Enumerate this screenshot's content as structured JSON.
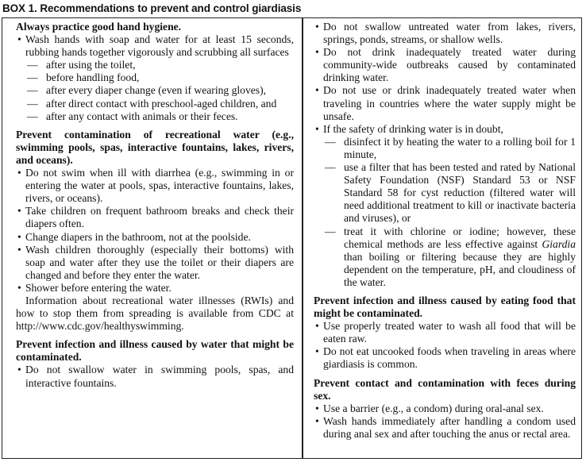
{
  "title": "BOX 1. Recommendations to prevent and control giardiasis",
  "columns": [
    {
      "sections": [
        {
          "heading": "Always practice good hand hygiene.",
          "items": [
            {
              "text": "Wash hands with soap and water for at least 15 seconds, rubbing hands together vigorously and scrubbing all surfaces",
              "subitems": [
                {
                  "text": "after using the toilet,"
                },
                {
                  "text": "before handling food,"
                },
                {
                  "text": "after every diaper change (even if wearing gloves),"
                },
                {
                  "text": "after direct contact with preschool-aged children, and"
                },
                {
                  "text": "after any contact with animals or their feces."
                }
              ]
            }
          ]
        },
        {
          "heading": "Prevent contamination of recreational water (e.g., swimming pools, spas, interactive fountains, lakes, rivers, and oceans).",
          "items": [
            {
              "text": "Do not swim when ill with diarrhea (e.g., swimming in or entering the water at pools, spas, interactive fountains, lakes, rivers, or oceans)."
            },
            {
              "text": "Take children on frequent bathroom breaks and check their diapers often."
            },
            {
              "text": "Change diapers in the bathroom, not at the poolside."
            },
            {
              "text": "Wash children thoroughly (especially their bottoms) with soap and water after they use the toilet or their diapers are changed and before they enter the water."
            },
            {
              "text": "Shower before entering the water."
            }
          ],
          "paragraph": "Information about recreational water illnesses (RWIs) and how to stop them from spreading is available from CDC at http://www.cdc.gov/healthyswimming."
        },
        {
          "heading": "Prevent infection and illness caused by water that might be contaminated.",
          "items": [
            {
              "text": "Do not swallow water in swimming pools, spas, and interactive fountains."
            }
          ]
        }
      ]
    },
    {
      "sections": [
        {
          "heading": "",
          "items": [
            {
              "text": "Do not swallow untreated water from lakes, rivers, springs, ponds, streams, or shallow wells."
            },
            {
              "text": "Do not drink inadequately treated water during community-wide outbreaks caused by contaminated drinking water."
            },
            {
              "text": "Do not use or drink inadequately treated water when traveling in countries where the water supply might be unsafe."
            },
            {
              "text": "If the safety of drinking water is in doubt,",
              "subitems": [
                {
                  "text": "disinfect it by heating the water to a rolling boil for 1 minute,"
                },
                {
                  "text": "use a filter that has been tested and rated by National Safety Foundation (NSF) Standard 53 or NSF Standard 58 for cyst reduction (filtered water will need additional treatment to kill or inactivate bacteria and viruses), or"
                },
                {
                  "text": "treat it with chlorine or iodine; however, these chemical methods are less effective against ",
                  "italic": "Giardia",
                  "after": " than boiling or filtering because they are highly dependent on the temperature, pH, and cloudiness of the water."
                }
              ]
            }
          ]
        },
        {
          "heading": "Prevent infection and illness caused by eating food that might be contaminated.",
          "items": [
            {
              "text": "Use properly treated water to wash all food that will be eaten raw."
            },
            {
              "text": "Do not eat uncooked foods when traveling in areas where giardiasis is common."
            }
          ]
        },
        {
          "heading": "Prevent contact and contamination with feces during sex.",
          "items": [
            {
              "text": "Use a barrier (e.g., a condom) during oral-anal sex."
            },
            {
              "text": "Wash hands immediately after handling a condom used during anal sex and after touching the anus or rectal area."
            }
          ]
        }
      ]
    }
  ],
  "glyphs": {
    "bullet": "•",
    "dash": "—"
  }
}
